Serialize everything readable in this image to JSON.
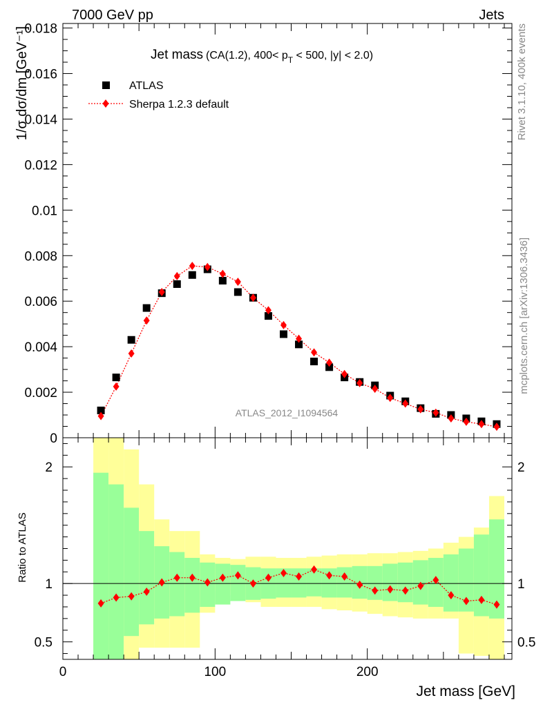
{
  "header": {
    "left": "7000 GeV pp",
    "right": "Jets"
  },
  "side_text": {
    "rivet": "Rivet 3.1.10,  400k events",
    "mcplots": "mcplots.cern.ch [arXiv:1306.3436]"
  },
  "colors": {
    "atlas": "#000000",
    "sherpa": "#ff0000",
    "band_inner": "#99ff99",
    "band_outer": "#ffff99"
  },
  "chart_data": [
    {
      "type": "scatter",
      "panel": "main",
      "title_main": "Jet mass",
      "title_sub": "(CA(1.2), 400< p",
      "title_sub_index": "T",
      "title_sub_end": " < 500, |y| < 2.0)",
      "ylabel": "1/σ dσ/dm [GeV⁻¹]",
      "analysis": "ATLAS_2012_I1094564",
      "xlim": [
        0,
        295
      ],
      "ylim": [
        0,
        0.0182
      ],
      "yticks": [
        0,
        0.002,
        0.004,
        0.006,
        0.008,
        0.01,
        0.012,
        0.014,
        0.016,
        0.018
      ],
      "ytick_labels": [
        "0",
        "0.002",
        "0.004",
        "0.006",
        "0.008",
        "0.01",
        "0.012",
        "0.014",
        "0.016",
        "0.018"
      ],
      "legend": {
        "position": "top-left",
        "atlas": "ATLAS",
        "sherpa": "Sherpa 1.2.3 default"
      },
      "x": [
        25,
        35,
        45,
        55,
        65,
        75,
        85,
        95,
        105,
        115,
        125,
        135,
        145,
        155,
        165,
        175,
        185,
        195,
        205,
        215,
        225,
        235,
        245,
        255,
        265,
        275,
        285
      ],
      "series": [
        {
          "name": "ATLAS",
          "values": [
            0.0012,
            0.00265,
            0.0043,
            0.0057,
            0.00635,
            0.00675,
            0.00715,
            0.0074,
            0.0069,
            0.0064,
            0.00615,
            0.00535,
            0.00455,
            0.0041,
            0.00335,
            0.0031,
            0.00265,
            0.00245,
            0.0023,
            0.00185,
            0.0016,
            0.0013,
            0.00105,
            0.001,
            0.00085,
            0.00072,
            0.0006
          ]
        },
        {
          "name": "Sherpa 1.2.3 default",
          "values": [
            0.00095,
            0.00225,
            0.0037,
            0.00515,
            0.0064,
            0.0071,
            0.00755,
            0.0075,
            0.0072,
            0.00685,
            0.00615,
            0.0056,
            0.00495,
            0.00435,
            0.00375,
            0.0033,
            0.0028,
            0.0024,
            0.00215,
            0.00175,
            0.0015,
            0.00125,
            0.0011,
            0.00085,
            0.0007,
            0.0006,
            0.00048
          ]
        }
      ]
    },
    {
      "type": "line",
      "panel": "ratio",
      "ylabel": "Ratio to ATLAS",
      "xlabel": "Jet mass [GeV]",
      "xlim": [
        0,
        295
      ],
      "ylim": [
        0.35,
        2.25
      ],
      "xticks": [
        0,
        100,
        200
      ],
      "xtick_labels": [
        "0",
        "100",
        "200"
      ],
      "yticks": [
        0.5,
        1,
        2
      ],
      "ytick_labels": [
        "0.5",
        "1",
        "2"
      ],
      "bin_edges": [
        20,
        30,
        40,
        50,
        60,
        70,
        80,
        90,
        100,
        110,
        120,
        130,
        140,
        150,
        160,
        170,
        180,
        190,
        200,
        210,
        220,
        230,
        240,
        250,
        260,
        270,
        280,
        290
      ],
      "band_inner_low": [
        0.35,
        0.35,
        0.55,
        0.65,
        0.7,
        0.72,
        0.75,
        0.8,
        0.82,
        0.85,
        0.86,
        0.87,
        0.88,
        0.88,
        0.89,
        0.88,
        0.88,
        0.87,
        0.86,
        0.85,
        0.84,
        0.82,
        0.8,
        0.76,
        0.76,
        0.72,
        0.7
      ],
      "band_inner_high": [
        1.95,
        1.85,
        1.65,
        1.45,
        1.32,
        1.27,
        1.22,
        1.18,
        1.17,
        1.16,
        1.14,
        1.13,
        1.13,
        1.13,
        1.13,
        1.13,
        1.14,
        1.15,
        1.15,
        1.17,
        1.18,
        1.2,
        1.22,
        1.25,
        1.3,
        1.42,
        1.55
      ],
      "band_outer_low": [
        0.35,
        0.35,
        0.35,
        0.45,
        0.45,
        0.45,
        0.45,
        0.75,
        0.94,
        0.9,
        0.84,
        0.8,
        0.8,
        0.8,
        0.8,
        0.78,
        0.77,
        0.76,
        0.74,
        0.72,
        0.71,
        0.7,
        0.7,
        0.7,
        0.4,
        0.38,
        0.35
      ],
      "band_outer_high": [
        2.3,
        2.25,
        2.15,
        1.85,
        1.55,
        1.45,
        1.45,
        1.25,
        1.22,
        1.21,
        1.23,
        1.23,
        1.22,
        1.22,
        1.23,
        1.24,
        1.25,
        1.25,
        1.26,
        1.26,
        1.27,
        1.28,
        1.3,
        1.35,
        1.4,
        1.48,
        1.75
      ],
      "x": [
        25,
        35,
        45,
        55,
        65,
        75,
        85,
        95,
        105,
        115,
        125,
        135,
        145,
        155,
        165,
        175,
        185,
        195,
        205,
        215,
        225,
        235,
        245,
        255,
        265,
        275,
        285
      ],
      "series": [
        {
          "name": "Sherpa 1.2.3 default",
          "values": [
            0.83,
            0.88,
            0.89,
            0.93,
            1.01,
            1.05,
            1.05,
            1.01,
            1.05,
            1.07,
            1.0,
            1.05,
            1.09,
            1.06,
            1.12,
            1.07,
            1.06,
            0.99,
            0.94,
            0.95,
            0.94,
            0.98,
            1.03,
            0.9,
            0.85,
            0.86,
            0.82
          ]
        }
      ]
    }
  ]
}
